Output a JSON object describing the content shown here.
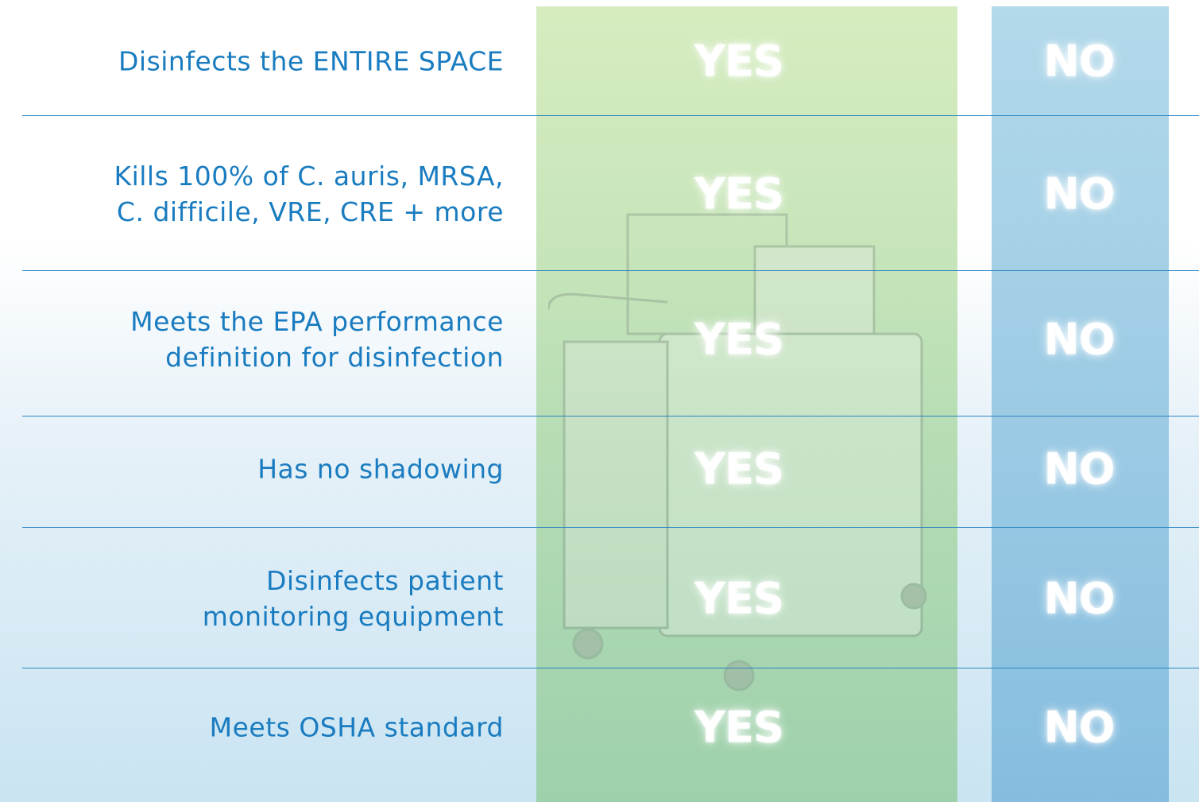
{
  "rows": [
    {
      "feature": [
        "Disinfects the ENTIRE SPACE"
      ],
      "yes": "YES",
      "no": "NO"
    },
    {
      "feature": [
        "Kills 100% of C. auris, MRSA,",
        "C. difficile, VRE, CRE + more"
      ],
      "yes": "YES",
      "no": "NO"
    },
    {
      "feature": [
        "Meets the EPA performance",
        "definition for disinfection"
      ],
      "yes": "YES",
      "no": "NO"
    },
    {
      "feature": [
        "Has no shadowing"
      ],
      "yes": "YES",
      "no": "NO"
    },
    {
      "feature": [
        "Disinfects patient",
        "monitoring equipment"
      ],
      "yes": "YES",
      "no": "NO"
    },
    {
      "feature": [
        "Meets OSHA standard"
      ],
      "yes": "YES",
      "no": "NO"
    }
  ]
}
